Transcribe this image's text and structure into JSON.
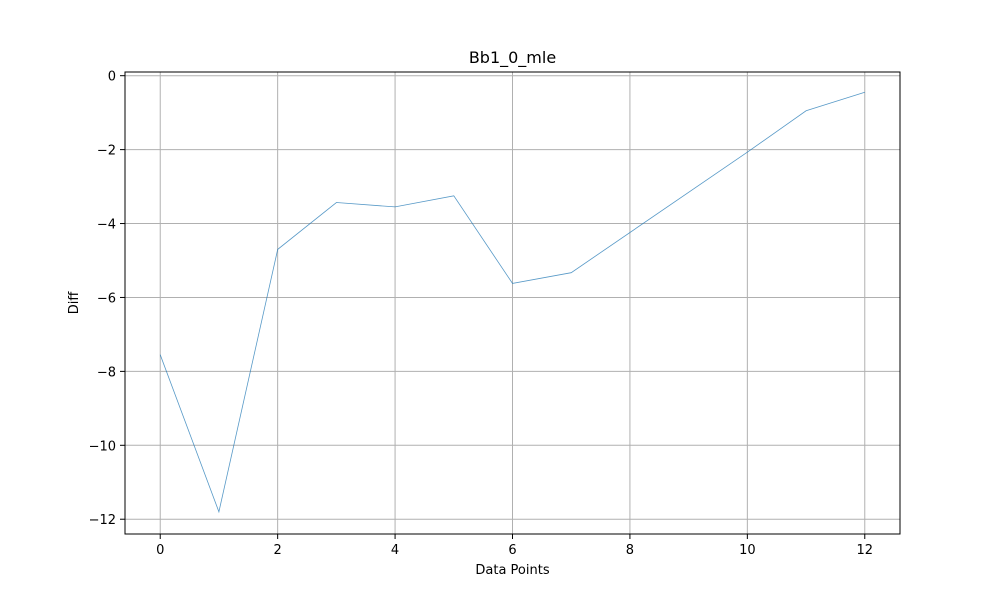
{
  "chart_data": {
    "type": "line",
    "title": "Bb1_0_mle",
    "xlabel": "Data Points",
    "ylabel": "Diff",
    "xlim": [
      -0.6,
      12.6
    ],
    "ylim": [
      -12.4,
      0.1
    ],
    "xticks": [
      0,
      2,
      4,
      6,
      8,
      10,
      12
    ],
    "xtick_labels": [
      "0",
      "2",
      "4",
      "6",
      "8",
      "10",
      "12"
    ],
    "yticks": [
      0,
      -2,
      -4,
      -6,
      -8,
      -10,
      -12
    ],
    "ytick_labels": [
      "0",
      "−2",
      "−4",
      "−6",
      "−8",
      "−10",
      "−12"
    ],
    "grid": true,
    "series": [
      {
        "color": "#1f77b4",
        "x": [
          0,
          1,
          2,
          3,
          4,
          5,
          6,
          7,
          10,
          11,
          12
        ],
        "values": [
          -7.55,
          -11.8,
          -4.7,
          -3.43,
          -3.55,
          -3.25,
          -5.62,
          -5.33,
          -2.07,
          -0.95,
          -0.45
        ]
      }
    ]
  }
}
